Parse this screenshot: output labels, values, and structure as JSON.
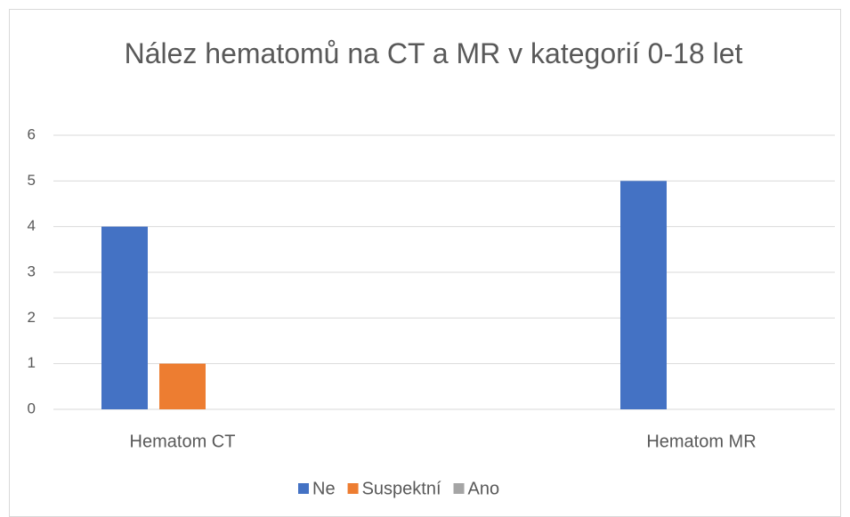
{
  "chart_data": {
    "type": "bar",
    "title": "Nález hematomů na CT a MR v kategorií 0-18 let",
    "categories": [
      "Hematom CT",
      "Hematom MR"
    ],
    "series": [
      {
        "name": "Ne",
        "color": "#4472c4",
        "values": [
          4,
          5
        ]
      },
      {
        "name": "Suspektní",
        "color": "#ed7d31",
        "values": [
          1,
          0
        ]
      },
      {
        "name": "Ano",
        "color": "#a5a5a5",
        "values": [
          0,
          0
        ]
      }
    ],
    "ylim": [
      0,
      6
    ],
    "yticks": [
      0,
      1,
      2,
      3,
      4,
      5,
      6
    ],
    "grid": true,
    "legend": "bottom"
  }
}
